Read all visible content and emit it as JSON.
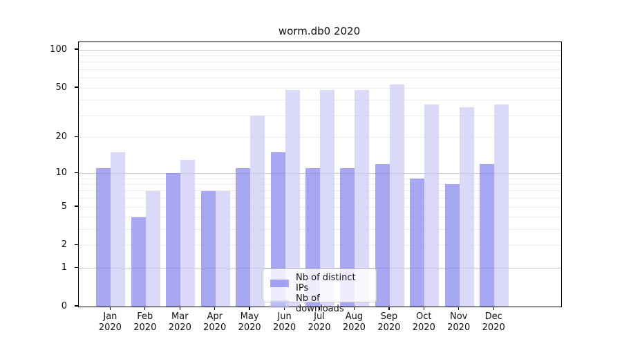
{
  "chart_data": {
    "type": "bar",
    "title": "worm.db0 2020",
    "categories": [
      {
        "line1": "Jan",
        "line2": "2020"
      },
      {
        "line1": "Feb",
        "line2": "2020"
      },
      {
        "line1": "Mar",
        "line2": "2020"
      },
      {
        "line1": "Apr",
        "line2": "2020"
      },
      {
        "line1": "May",
        "line2": "2020"
      },
      {
        "line1": "Jun",
        "line2": "2020"
      },
      {
        "line1": "Jul",
        "line2": "2020"
      },
      {
        "line1": "Aug",
        "line2": "2020"
      },
      {
        "line1": "Sep",
        "line2": "2020"
      },
      {
        "line1": "Oct",
        "line2": "2020"
      },
      {
        "line1": "Nov",
        "line2": "2020"
      },
      {
        "line1": "Dec",
        "line2": "2020"
      }
    ],
    "series": [
      {
        "name": "Nb of distinct IPs",
        "color": "rgba(122,122,235,0.66)",
        "values": [
          11,
          4,
          10,
          7,
          11,
          15,
          11,
          11,
          12,
          9,
          8,
          12
        ]
      },
      {
        "name": "Nb of downloads",
        "color": "rgba(199,199,244,0.66)",
        "values": [
          15,
          7,
          13,
          7,
          30,
          48,
          48,
          48,
          53,
          37,
          35,
          37
        ]
      }
    ],
    "yscale": "log1p",
    "ylim": [
      0,
      115
    ],
    "yticks": [
      0,
      1,
      2,
      5,
      10,
      20,
      50,
      100
    ],
    "major_gridlines": [
      1,
      10,
      100
    ],
    "minor_gridlines": [
      2,
      3,
      4,
      5,
      6,
      7,
      8,
      9,
      20,
      30,
      40,
      50,
      60,
      70,
      80,
      90
    ],
    "grid": true,
    "legend_position": "lower center",
    "colors": {
      "grid_minor": "#ececec",
      "grid_major": "#c6c6c6",
      "axis": "#000000",
      "text": "#111111"
    }
  }
}
